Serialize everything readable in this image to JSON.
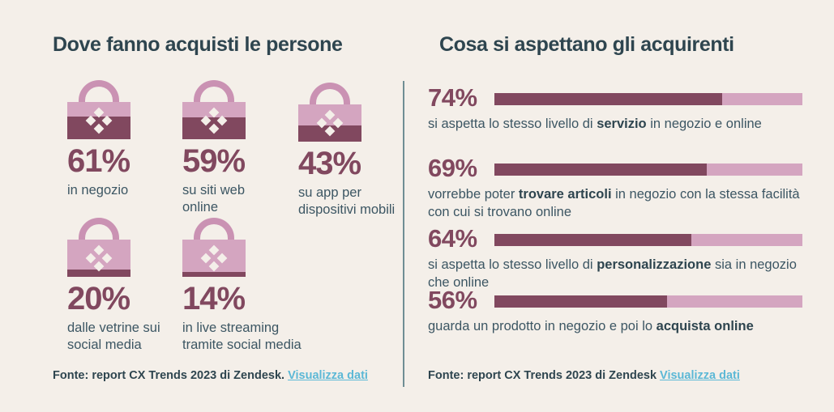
{
  "left": {
    "title": "Dove fanno acquisti le persone",
    "stats": [
      {
        "pct_label": "61%",
        "value": 61,
        "label": "in negozio"
      },
      {
        "pct_label": "59%",
        "value": 59,
        "label": "su siti web online"
      },
      {
        "pct_label": "43%",
        "value": 43,
        "label": "su app per dispositivi mobili"
      },
      {
        "pct_label": "20%",
        "value": 20,
        "label": "dalle vetrine sui social media"
      },
      {
        "pct_label": "14%",
        "value": 14,
        "label": "in live streaming tramite social media"
      }
    ],
    "source_text": "Fonte: report CX Trends 2023 di Zendesk.",
    "source_link": "Visualizza dati"
  },
  "right": {
    "title": "Cosa si aspettano gli acquirenti",
    "bars": [
      {
        "pct_label": "74%",
        "value": 74,
        "desc": [
          {
            "t": "si aspetta lo stesso livello di "
          },
          {
            "t": "servizio",
            "b": true
          },
          {
            "t": " in negozio e online"
          }
        ]
      },
      {
        "pct_label": "69%",
        "value": 69,
        "desc": [
          {
            "t": "vorrebbe poter "
          },
          {
            "t": "trovare articoli",
            "b": true
          },
          {
            "t": " in negozio con la stessa facilità con cui si trovano online"
          }
        ]
      },
      {
        "pct_label": "64%",
        "value": 64,
        "desc": [
          {
            "t": "si aspetta lo stesso livello di "
          },
          {
            "t": "personalizzazione",
            "b": true
          },
          {
            "t": " sia in negozio che online"
          }
        ]
      },
      {
        "pct_label": "56%",
        "value": 56,
        "desc": [
          {
            "t": "guarda un prodotto in negozio e poi lo "
          },
          {
            "t": "acquista online",
            "b": true
          }
        ]
      }
    ],
    "source_text": "Fonte: report CX Trends 2023 di Zendesk",
    "source_link": "Visualizza dati"
  },
  "icons": {
    "bag": "shopping-bag-icon",
    "diamond_pattern": "diamond-cluster-icon"
  },
  "colors": {
    "background": "#f4efe9",
    "title": "#2e454f",
    "body_text": "#3c5663",
    "maroon": "#81485f",
    "pink_light": "#d4a5c0",
    "pink_handle": "#ca92b3",
    "link_blue": "#5cb8d6",
    "divider": "#6f8e94"
  },
  "chart_data": [
    {
      "type": "bar",
      "variant": "pictogram-fill (shopping bags)",
      "title": "Dove fanno acquisti le persone",
      "categories": [
        "in negozio",
        "su siti web online",
        "su app per dispositivi mobili",
        "dalle vetrine sui social media",
        "in live streaming tramite social media"
      ],
      "values": [
        61,
        59,
        43,
        20,
        14
      ],
      "unit": "%",
      "ylim": [
        0,
        100
      ],
      "source": "Fonte: report CX Trends 2023 di Zendesk. Visualizza dati"
    },
    {
      "type": "bar",
      "variant": "horizontal progress bars",
      "title": "Cosa si aspettano gli acquirenti",
      "categories": [
        "si aspetta lo stesso livello di servizio in negozio e online",
        "vorrebbe poter trovare articoli in negozio con la stessa facilità con cui si trovano online",
        "si aspetta lo stesso livello di personalizzazione sia in negozio che online",
        "guarda un prodotto in negozio e poi lo acquista online"
      ],
      "values": [
        74,
        69,
        64,
        56
      ],
      "unit": "%",
      "xlim": [
        0,
        100
      ],
      "source": "Fonte: report CX Trends 2023 di Zendesk Visualizza dati"
    }
  ]
}
